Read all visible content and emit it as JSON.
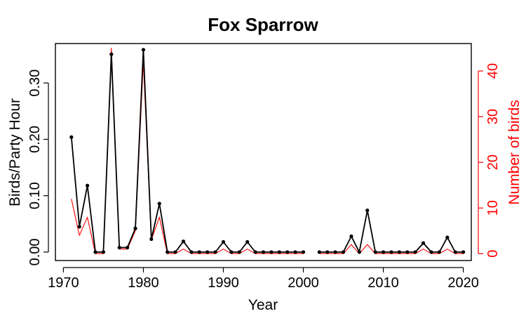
{
  "chart_data": {
    "type": "line",
    "title": "Fox Sparrow",
    "xlabel": "Year",
    "ylabel": "Birds/Party Hour",
    "y2label": "Number of birds",
    "xlim": [
      1969,
      2021
    ],
    "ylim": [
      -0.015,
      0.37
    ],
    "y2lim": [
      -1.5,
      46
    ],
    "x_ticks": [
      1970,
      1980,
      1990,
      2000,
      2010,
      2020
    ],
    "y_ticks": [
      0.0,
      0.1,
      0.2,
      0.3
    ],
    "y_tick_labels": [
      "0.00",
      "0.10",
      "0.20",
      "0.30"
    ],
    "y2_ticks": [
      0,
      10,
      20,
      30,
      40
    ],
    "y2_tick_labels": [
      "0",
      "10",
      "20",
      "30",
      "40"
    ],
    "colors": {
      "primary": "#000000",
      "secondary": "#ff0000"
    },
    "x": [
      1971,
      1972,
      1973,
      1974,
      1975,
      1976,
      1977,
      1978,
      1979,
      1980,
      1981,
      1982,
      1983,
      1984,
      1985,
      1986,
      1987,
      1988,
      1989,
      1990,
      1991,
      1992,
      1993,
      1994,
      1995,
      1996,
      1997,
      1998,
      1999,
      2000,
      2001,
      2002,
      2003,
      2004,
      2005,
      2006,
      2007,
      2008,
      2009,
      2010,
      2011,
      2012,
      2013,
      2014,
      2015,
      2016,
      2017,
      2018,
      2019,
      2020
    ],
    "series": [
      {
        "axis": "left",
        "color": "#000000",
        "values": [
          0.204,
          0.045,
          0.118,
          0.0,
          0.0,
          0.351,
          0.008,
          0.008,
          0.042,
          0.359,
          0.023,
          0.086,
          0.0,
          0.0,
          0.019,
          0.0,
          0.0,
          0.0,
          0.0,
          0.018,
          0.0,
          0.0,
          0.018,
          0.0,
          0.0,
          0.0,
          0.0,
          0.0,
          0.0,
          0.0,
          null,
          0.0,
          0.0,
          0.0,
          0.0,
          0.028,
          0.0,
          0.074,
          0.0,
          0.0,
          0.0,
          0.0,
          0.0,
          0.0,
          0.016,
          0.0,
          0.0,
          0.026,
          0.0,
          0.0
        ]
      },
      {
        "axis": "right",
        "color": "#ff0000",
        "values": [
          12,
          4,
          8,
          0,
          0,
          45,
          1,
          1,
          5,
          42,
          3,
          8,
          0,
          0,
          1,
          0,
          0,
          0,
          0,
          1,
          0,
          0,
          1,
          0,
          0,
          0,
          0,
          0,
          0,
          0,
          null,
          0,
          0,
          0,
          0,
          2,
          0,
          2,
          0,
          0,
          0,
          0,
          0,
          0,
          1,
          0,
          0,
          1,
          0,
          0
        ]
      }
    ]
  }
}
